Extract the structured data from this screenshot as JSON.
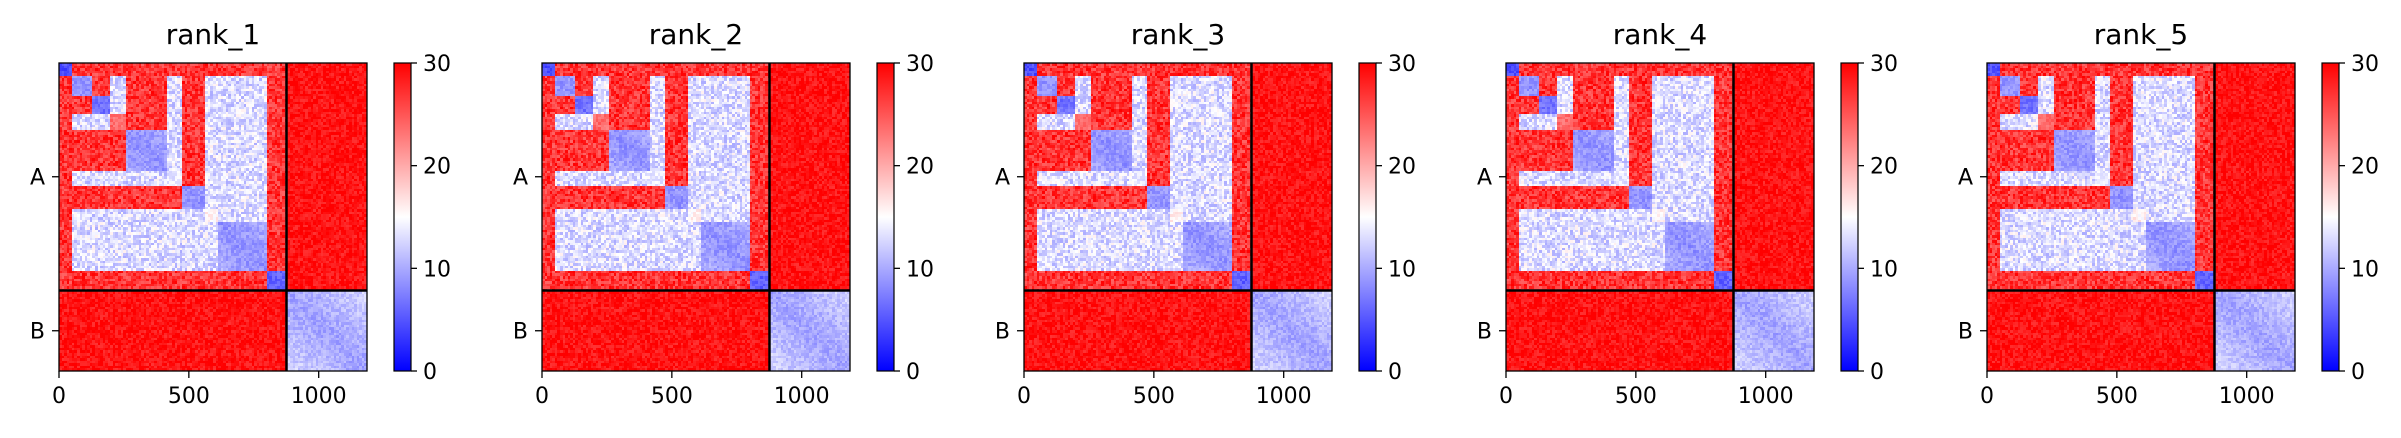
{
  "chart_data": {
    "type": "heatmap",
    "colormap": {
      "name": "bwr",
      "low": "#0000ff",
      "mid": "#ffffff",
      "high": "#ff0000"
    },
    "colorbar": {
      "vmin": 0,
      "vmax": 30,
      "ticks": [
        "0",
        "10",
        "20",
        "30"
      ]
    },
    "chains": [
      {
        "label": "A",
        "start": 0,
        "end": 876
      },
      {
        "label": "B",
        "start": 876,
        "end": 1186
      }
    ],
    "x_ticks": [
      0,
      500,
      1000
    ],
    "x_tick_labels": [
      "0",
      "500",
      "1000"
    ],
    "domains": [
      {
        "start": 0,
        "end": 50,
        "inner": 3
      },
      {
        "start": 50,
        "end": 130,
        "inner": 7
      },
      {
        "start": 130,
        "end": 200,
        "inner": 5
      },
      {
        "start": 200,
        "end": 260,
        "inner": 22
      },
      {
        "start": 260,
        "end": 420,
        "inner": 7
      },
      {
        "start": 420,
        "end": 470,
        "inner": 12
      },
      {
        "start": 470,
        "end": 560,
        "inner": 7
      },
      {
        "start": 560,
        "end": 610,
        "inner": 14
      },
      {
        "start": 610,
        "end": 800,
        "inner": 7
      },
      {
        "start": 800,
        "end": 876,
        "inner": 4
      },
      {
        "start": 876,
        "end": 1186,
        "inner": 8
      }
    ],
    "panels": [
      {
        "title": "rank_1"
      },
      {
        "title": "rank_2"
      },
      {
        "title": "rank_3"
      },
      {
        "title": "rank_4"
      },
      {
        "title": "rank_5"
      }
    ]
  }
}
